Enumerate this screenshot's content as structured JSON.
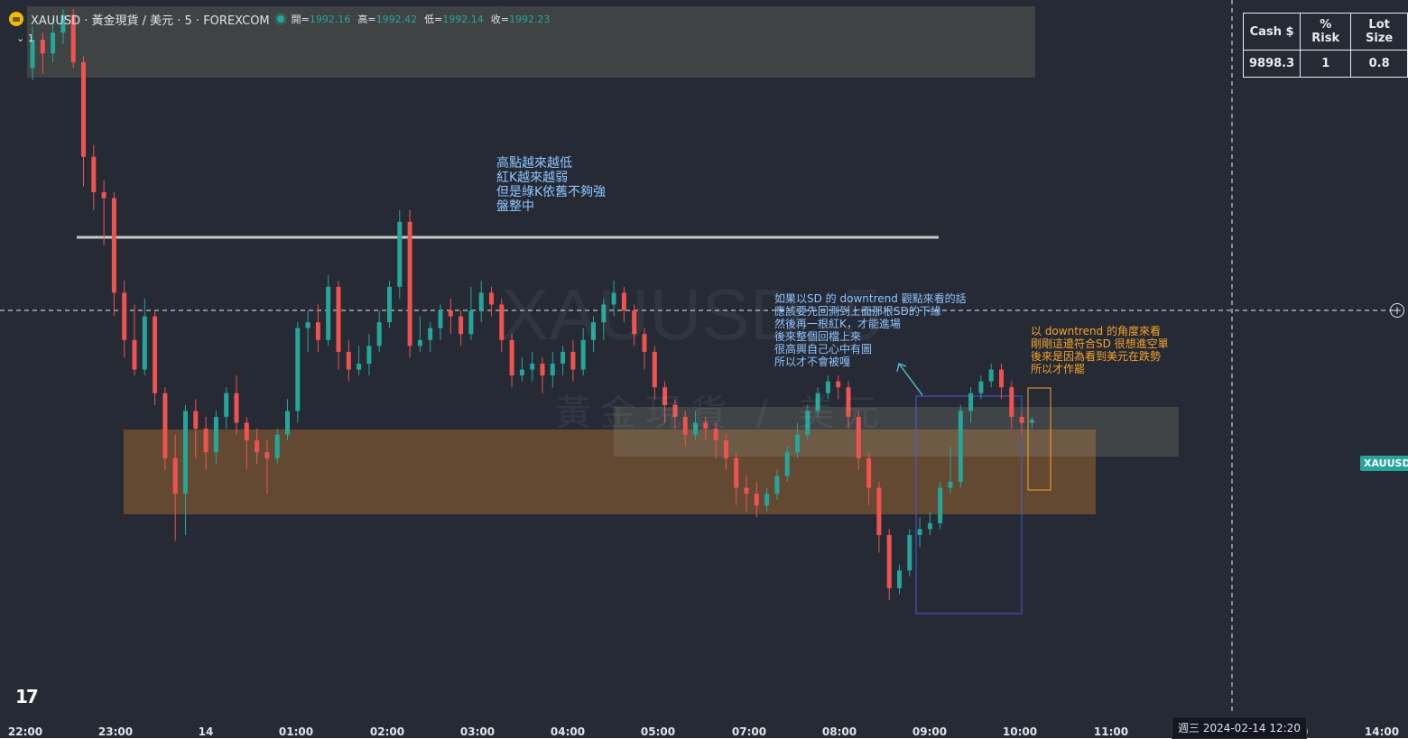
{
  "header": {
    "symbol": "XAUUSD",
    "description": "黃金現貨 / 美元",
    "interval": "5",
    "exchange": "FOREXCOM",
    "title_full": "XAUUSD · 黃金現貨 / 美元 · 5 · FOREXCOM",
    "ohlc": {
      "open_label": "開=",
      "open": "1992.16",
      "high_label": "高=",
      "high": "1992.42",
      "low_label": "低=",
      "low": "1992.14",
      "close_label": "收=",
      "close": "1992.23"
    },
    "collapse_label": "1"
  },
  "watermark": {
    "symbol": "XAUUSD, 5",
    "description": "黃金現貨 / 美元"
  },
  "risk_table": {
    "headers": [
      "Cash $",
      "% Risk",
      "Lot Size"
    ],
    "values": [
      "9898.3",
      "1",
      "0.8"
    ]
  },
  "annotations": {
    "note1": "高點越來越低\n紅K越來越弱\n但是綠K依舊不夠強\n盤整中",
    "note2": "如果以SD 的 downtrend 觀點來看的話\n應該要先回測到上面那根SD的下緣\n然後再一根紅K，才能進場\n後來整個回檔上來\n很高興自己心中有圖\n所以才不會被嘎",
    "note3": "以 downtrend 的角度來看\n剛剛這邊符合SD 很想進空單\n後來是因為看到美元在跌勢\n所以才作罷"
  },
  "price_tag": "XAUUSD",
  "time_axis": {
    "ticks": [
      "22:00",
      "23:00",
      "14",
      "01:00",
      "02:00",
      "03:00",
      "04:00",
      "05:00",
      "07:00",
      "08:00",
      "09:00",
      "10:00",
      "11:00",
      "14:00"
    ],
    "cursor_label": "週三 2024-02-14   12:20",
    "partial_tick": "00"
  },
  "colors": {
    "background": "#262a34",
    "up": "#26a69a",
    "down": "#ef5350",
    "zone_orange": "#a0642a",
    "zone_gray": "#6b6e66",
    "note_blue": "#8ec5ff",
    "note_orange": "#f7a229",
    "box_blue": "#4a5bd4"
  },
  "chart_data": {
    "type": "candlestick",
    "title": "XAUUSD · 黃金現貨 / 美元 · 5 · FOREXCOM",
    "interval": "5m",
    "x_axis": "time",
    "last_ohlc": {
      "open": 1992.16,
      "high": 1992.42,
      "low": 1992.14,
      "close": 1992.23
    },
    "candles": [
      {
        "o": 0.9,
        "c": 0.948,
        "h": 0.97,
        "l": 0.88
      },
      {
        "o": 0.948,
        "c": 0.925,
        "h": 0.96,
        "l": 0.89
      },
      {
        "o": 0.925,
        "c": 0.96,
        "h": 0.985,
        "l": 0.91
      },
      {
        "o": 0.96,
        "c": 0.99,
        "h": 1.0,
        "l": 0.94
      },
      {
        "o": 0.99,
        "c": 0.91,
        "h": 1.0,
        "l": 0.9
      },
      {
        "o": 0.91,
        "c": 0.75,
        "h": 0.92,
        "l": 0.7
      },
      {
        "o": 0.75,
        "c": 0.69,
        "h": 0.77,
        "l": 0.66
      },
      {
        "o": 0.69,
        "c": 0.68,
        "h": 0.71,
        "l": 0.6
      },
      {
        "o": 0.68,
        "c": 0.52,
        "h": 0.69,
        "l": 0.48
      },
      {
        "o": 0.52,
        "c": 0.44,
        "h": 0.54,
        "l": 0.41
      },
      {
        "o": 0.44,
        "c": 0.39,
        "h": 0.5,
        "l": 0.38
      },
      {
        "o": 0.39,
        "c": 0.48,
        "h": 0.51,
        "l": 0.38
      },
      {
        "o": 0.48,
        "c": 0.35,
        "h": 0.49,
        "l": 0.33
      },
      {
        "o": 0.35,
        "c": 0.24,
        "h": 0.36,
        "l": 0.22
      },
      {
        "o": 0.24,
        "c": 0.18,
        "h": 0.28,
        "l": 0.1
      },
      {
        "o": 0.18,
        "c": 0.32,
        "h": 0.33,
        "l": 0.11
      },
      {
        "o": 0.32,
        "c": 0.29,
        "h": 0.34,
        "l": 0.24
      },
      {
        "o": 0.29,
        "c": 0.25,
        "h": 0.31,
        "l": 0.22
      },
      {
        "o": 0.25,
        "c": 0.31,
        "h": 0.32,
        "l": 0.23
      },
      {
        "o": 0.31,
        "c": 0.35,
        "h": 0.36,
        "l": 0.29
      },
      {
        "o": 0.35,
        "c": 0.3,
        "h": 0.38,
        "l": 0.28
      },
      {
        "o": 0.3,
        "c": 0.27,
        "h": 0.31,
        "l": 0.22
      },
      {
        "o": 0.27,
        "c": 0.25,
        "h": 0.29,
        "l": 0.23
      },
      {
        "o": 0.25,
        "c": 0.24,
        "h": 0.27,
        "l": 0.18
      },
      {
        "o": 0.24,
        "c": 0.28,
        "h": 0.29,
        "l": 0.23
      },
      {
        "o": 0.28,
        "c": 0.32,
        "h": 0.34,
        "l": 0.27
      },
      {
        "o": 0.32,
        "c": 0.46,
        "h": 0.47,
        "l": 0.3
      },
      {
        "o": 0.46,
        "c": 0.47,
        "h": 0.49,
        "l": 0.42
      },
      {
        "o": 0.47,
        "c": 0.44,
        "h": 0.5,
        "l": 0.42
      },
      {
        "o": 0.44,
        "c": 0.53,
        "h": 0.55,
        "l": 0.43
      },
      {
        "o": 0.53,
        "c": 0.42,
        "h": 0.54,
        "l": 0.39
      },
      {
        "o": 0.42,
        "c": 0.39,
        "h": 0.44,
        "l": 0.37
      },
      {
        "o": 0.39,
        "c": 0.4,
        "h": 0.43,
        "l": 0.38
      },
      {
        "o": 0.4,
        "c": 0.43,
        "h": 0.45,
        "l": 0.38
      },
      {
        "o": 0.43,
        "c": 0.47,
        "h": 0.49,
        "l": 0.42
      },
      {
        "o": 0.47,
        "c": 0.53,
        "h": 0.54,
        "l": 0.46
      },
      {
        "o": 0.53,
        "c": 0.64,
        "h": 0.66,
        "l": 0.51
      },
      {
        "o": 0.64,
        "c": 0.43,
        "h": 0.66,
        "l": 0.41
      },
      {
        "o": 0.43,
        "c": 0.44,
        "h": 0.48,
        "l": 0.42
      },
      {
        "o": 0.44,
        "c": 0.46,
        "h": 0.47,
        "l": 0.42
      },
      {
        "o": 0.46,
        "c": 0.49,
        "h": 0.5,
        "l": 0.44
      },
      {
        "o": 0.49,
        "c": 0.48,
        "h": 0.51,
        "l": 0.45
      },
      {
        "o": 0.48,
        "c": 0.45,
        "h": 0.49,
        "l": 0.43
      },
      {
        "o": 0.45,
        "c": 0.49,
        "h": 0.53,
        "l": 0.44
      },
      {
        "o": 0.49,
        "c": 0.52,
        "h": 0.54,
        "l": 0.47
      },
      {
        "o": 0.52,
        "c": 0.5,
        "h": 0.53,
        "l": 0.48
      },
      {
        "o": 0.5,
        "c": 0.44,
        "h": 0.51,
        "l": 0.42
      },
      {
        "o": 0.44,
        "c": 0.38,
        "h": 0.45,
        "l": 0.36
      },
      {
        "o": 0.38,
        "c": 0.39,
        "h": 0.41,
        "l": 0.37
      },
      {
        "o": 0.39,
        "c": 0.4,
        "h": 0.42,
        "l": 0.37
      },
      {
        "o": 0.4,
        "c": 0.38,
        "h": 0.41,
        "l": 0.35
      },
      {
        "o": 0.38,
        "c": 0.4,
        "h": 0.42,
        "l": 0.36
      },
      {
        "o": 0.4,
        "c": 0.42,
        "h": 0.43,
        "l": 0.38
      },
      {
        "o": 0.42,
        "c": 0.39,
        "h": 0.44,
        "l": 0.37
      },
      {
        "o": 0.39,
        "c": 0.44,
        "h": 0.46,
        "l": 0.38
      },
      {
        "o": 0.44,
        "c": 0.47,
        "h": 0.48,
        "l": 0.42
      },
      {
        "o": 0.47,
        "c": 0.5,
        "h": 0.51,
        "l": 0.44
      },
      {
        "o": 0.5,
        "c": 0.52,
        "h": 0.54,
        "l": 0.48
      },
      {
        "o": 0.52,
        "c": 0.49,
        "h": 0.53,
        "l": 0.47
      },
      {
        "o": 0.49,
        "c": 0.45,
        "h": 0.5,
        "l": 0.43
      },
      {
        "o": 0.45,
        "c": 0.42,
        "h": 0.46,
        "l": 0.39
      },
      {
        "o": 0.42,
        "c": 0.36,
        "h": 0.43,
        "l": 0.34
      },
      {
        "o": 0.36,
        "c": 0.33,
        "h": 0.37,
        "l": 0.3
      },
      {
        "o": 0.33,
        "c": 0.31,
        "h": 0.34,
        "l": 0.29
      },
      {
        "o": 0.31,
        "c": 0.28,
        "h": 0.32,
        "l": 0.26
      },
      {
        "o": 0.28,
        "c": 0.3,
        "h": 0.32,
        "l": 0.27
      },
      {
        "o": 0.3,
        "c": 0.29,
        "h": 0.31,
        "l": 0.27
      },
      {
        "o": 0.29,
        "c": 0.27,
        "h": 0.3,
        "l": 0.24
      },
      {
        "o": 0.27,
        "c": 0.24,
        "h": 0.28,
        "l": 0.22
      },
      {
        "o": 0.24,
        "c": 0.19,
        "h": 0.25,
        "l": 0.16
      },
      {
        "o": 0.19,
        "c": 0.18,
        "h": 0.21,
        "l": 0.15
      },
      {
        "o": 0.18,
        "c": 0.16,
        "h": 0.2,
        "l": 0.14
      },
      {
        "o": 0.16,
        "c": 0.18,
        "h": 0.19,
        "l": 0.15
      },
      {
        "o": 0.18,
        "c": 0.21,
        "h": 0.22,
        "l": 0.17
      },
      {
        "o": 0.21,
        "c": 0.25,
        "h": 0.26,
        "l": 0.2
      },
      {
        "o": 0.25,
        "c": 0.28,
        "h": 0.3,
        "l": 0.24
      },
      {
        "o": 0.28,
        "c": 0.32,
        "h": 0.33,
        "l": 0.27
      },
      {
        "o": 0.32,
        "c": 0.35,
        "h": 0.36,
        "l": 0.31
      },
      {
        "o": 0.35,
        "c": 0.37,
        "h": 0.38,
        "l": 0.34
      },
      {
        "o": 0.37,
        "c": 0.36,
        "h": 0.38,
        "l": 0.34
      },
      {
        "o": 0.36,
        "c": 0.31,
        "h": 0.37,
        "l": 0.29
      },
      {
        "o": 0.31,
        "c": 0.24,
        "h": 0.32,
        "l": 0.22
      },
      {
        "o": 0.24,
        "c": 0.19,
        "h": 0.25,
        "l": 0.16
      },
      {
        "o": 0.19,
        "c": 0.11,
        "h": 0.2,
        "l": 0.08
      },
      {
        "o": 0.11,
        "c": 0.02,
        "h": 0.12,
        "l": 0.0
      },
      {
        "o": 0.02,
        "c": 0.05,
        "h": 0.06,
        "l": 0.01
      },
      {
        "o": 0.05,
        "c": 0.11,
        "h": 0.12,
        "l": 0.04
      },
      {
        "o": 0.11,
        "c": 0.12,
        "h": 0.14,
        "l": 0.09
      },
      {
        "o": 0.12,
        "c": 0.13,
        "h": 0.15,
        "l": 0.11
      },
      {
        "o": 0.13,
        "c": 0.19,
        "h": 0.2,
        "l": 0.12
      },
      {
        "o": 0.19,
        "c": 0.2,
        "h": 0.26,
        "l": 0.18
      },
      {
        "o": 0.2,
        "c": 0.32,
        "h": 0.33,
        "l": 0.19
      },
      {
        "o": 0.32,
        "c": 0.35,
        "h": 0.36,
        "l": 0.3
      },
      {
        "o": 0.35,
        "c": 0.37,
        "h": 0.38,
        "l": 0.34
      },
      {
        "o": 0.37,
        "c": 0.39,
        "h": 0.4,
        "l": 0.36
      },
      {
        "o": 0.39,
        "c": 0.36,
        "h": 0.4,
        "l": 0.34
      },
      {
        "o": 0.36,
        "c": 0.31,
        "h": 0.37,
        "l": 0.29
      },
      {
        "o": 0.31,
        "c": 0.3,
        "h": 0.32,
        "l": 0.28
      },
      {
        "o": 0.3,
        "c": 0.305,
        "h": 0.31,
        "l": 0.29
      }
    ],
    "annotations": [
      "horizontal resistance line (gray)",
      "orange supply/demand zone",
      "gray supply/demand zone (lower right)",
      "gray zone (top)",
      "blue rectangle around dip",
      "orange rectangle around last candles",
      "dashed crosshair horizontal and vertical lines"
    ]
  }
}
